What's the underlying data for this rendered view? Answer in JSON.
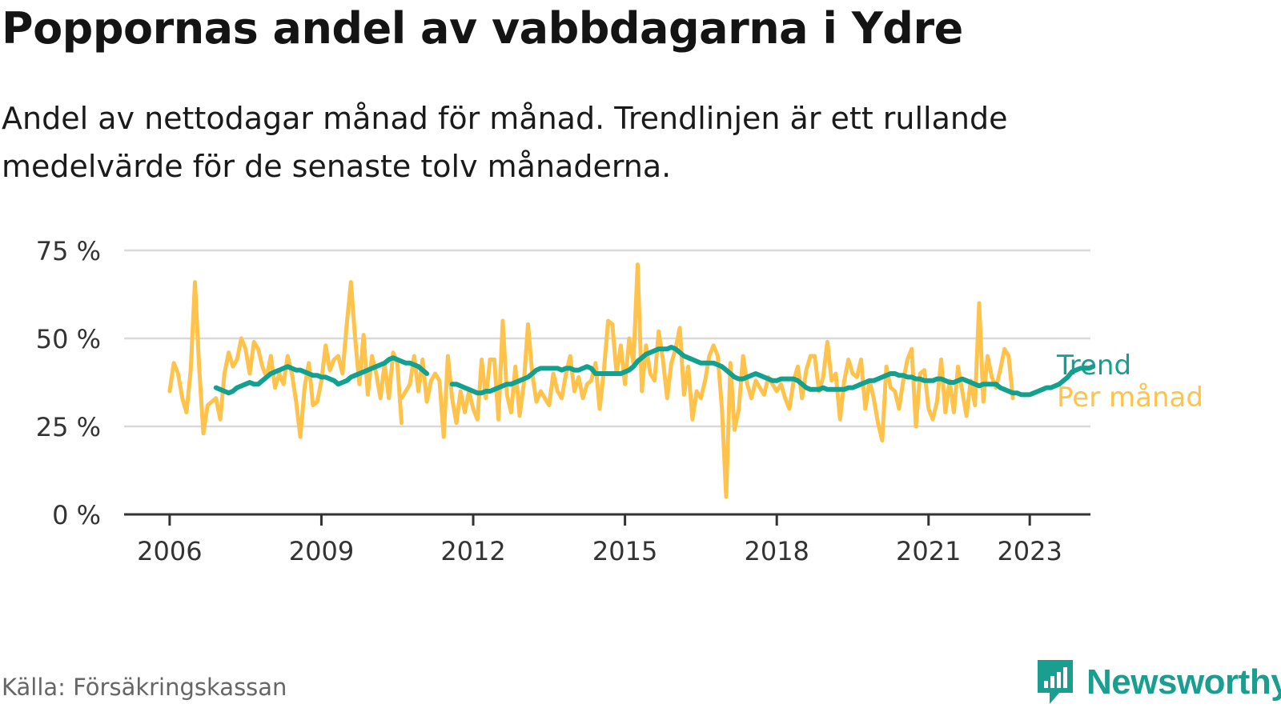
{
  "title": "Poppornas andel av vabbdagarna i Ydre",
  "subtitle": "Andel av nettodagar månad för månad. Trendlinjen är ett rullande medelvärde för de senaste tolv månaderna.",
  "source": "Källa: Försäkringskassan",
  "brand": "Newsworthy",
  "colors": {
    "trend": "#13a08f",
    "monthly": "#ffc24a",
    "grid": "#d9d9d9",
    "axis": "#333333"
  },
  "chart_data": {
    "type": "line",
    "y_unit": "%",
    "ylim": [
      0,
      75
    ],
    "y_ticks": [
      {
        "value": 0,
        "label": "0 %"
      },
      {
        "value": 25,
        "label": "25 %"
      },
      {
        "value": 50,
        "label": "50 %"
      },
      {
        "value": 75,
        "label": "75 %"
      }
    ],
    "xlim": [
      2005.1,
      2024.2
    ],
    "x_ticks": [
      {
        "value": 2006,
        "label": "2006"
      },
      {
        "value": 2009,
        "label": "2009"
      },
      {
        "value": 2012,
        "label": "2012"
      },
      {
        "value": 2015,
        "label": "2015"
      },
      {
        "value": 2018,
        "label": "2018"
      },
      {
        "value": 2021,
        "label": "2021"
      },
      {
        "value": 2023,
        "label": "2023"
      }
    ],
    "grid": true,
    "legend": "right, at line ends",
    "series": [
      {
        "name": "Per månad",
        "color": "#ffc24a",
        "segments": [
          {
            "start": 2006.0,
            "step": 0.0833333,
            "values": [
              35,
              43,
              40,
              33,
              29,
              41,
              66,
              42,
              23,
              31,
              32,
              33,
              27,
              40,
              46,
              42,
              44,
              50,
              47,
              40,
              49,
              47,
              42,
              39,
              45,
              36,
              40,
              37,
              45,
              40,
              32,
              22,
              36,
              43,
              31,
              32,
              38,
              48,
              41,
              44,
              45,
              40,
              54,
              66,
              50,
              37,
              51,
              34,
              45,
              40,
              33,
              43,
              33,
              46,
              43,
              26
            ]
          },
          {
            "start": 2010.5833333,
            "step": 0.0833333,
            "values": [
              33,
              35,
              37,
              45,
              35,
              44,
              32,
              38,
              40,
              38,
              22,
              45,
              33,
              26,
              35,
              29,
              35,
              30,
              27,
              44,
              33,
              44,
              44,
              27,
              55,
              34,
              29,
              42,
              28,
              37,
              54,
              40,
              32,
              35,
              33,
              31,
              40,
              35,
              33,
              40,
              45,
              35,
              39,
              33,
              37,
              38,
              43,
              30,
              41,
              55,
              54,
              40,
              48,
              37,
              50,
              43,
              71,
              35,
              48,
              40,
              38,
              52,
              44,
              33,
              43,
              47,
              53,
              34,
              42,
              27,
              35,
              33,
              38,
              45,
              48,
              45,
              30,
              5,
              43,
              24,
              30,
              45,
              37,
              33,
              38,
              36,
              34,
              39,
              37,
              35,
              37,
              33,
              30,
              38,
              42,
              33,
              41,
              45,
              45,
              35,
              39,
              49,
              38,
              40,
              27,
              38,
              44,
              40,
              39,
              44,
              30,
              38,
              33,
              26,
              21,
              42,
              36,
              35,
              30,
              38,
              44,
              47,
              25,
              40,
              41,
              30,
              27,
              32,
              44,
              29,
              38,
              29,
              42,
              35,
              28,
              38,
              31,
              60,
              32,
              45,
              39,
              36,
              41,
              47,
              45,
              33
            ]
          }
        ]
      },
      {
        "name": "Trend",
        "color": "#13a08f",
        "segments": [
          {
            "start": 2006.9166667,
            "step": 0.0833333,
            "values": [
              36,
              35.5,
              35,
              34.5,
              35,
              36,
              36.5,
              37,
              37.5,
              37,
              37,
              38,
              39,
              40,
              40.5,
              41,
              41.5,
              42,
              41.5,
              41,
              41,
              40.5,
              40,
              39.5,
              39.5,
              39,
              39,
              38.5,
              38,
              37,
              37.5,
              38,
              39,
              39.5,
              40,
              40.5,
              41,
              41.5,
              42,
              42.5,
              43,
              44,
              44.5,
              44,
              43.5,
              43,
              43,
              42.5,
              42,
              41,
              40
            ]
          },
          {
            "start": 2011.5833333,
            "step": 0.0833333,
            "values": [
              37,
              37,
              36.5,
              36,
              35.5,
              35,
              34.5,
              34.5,
              35,
              35,
              35.5,
              36,
              36.5,
              37,
              37,
              37.5,
              38,
              38.5,
              39,
              40,
              41,
              41.5,
              41.5,
              41.5,
              41.5,
              41.5,
              41,
              41.5,
              41.5,
              41,
              41,
              41.5,
              42,
              41.5,
              40,
              40,
              40,
              40,
              40,
              40,
              40,
              40.5,
              41,
              42,
              43.5,
              44.5,
              45.5,
              46,
              46.5,
              47,
              47,
              47,
              47.5,
              47,
              46,
              45,
              44.5,
              44,
              43.5,
              43,
              43,
              43,
              43,
              42.5,
              42,
              41,
              40,
              39,
              38.5,
              38.5,
              39,
              39.5,
              40,
              39.5,
              39,
              38.5,
              38,
              38,
              38.5,
              38.5,
              38.5,
              38.5,
              38,
              37,
              36,
              35.5,
              35.5,
              35.5,
              36,
              35.5,
              35.5,
              35.5,
              35.5,
              35.5,
              36,
              36,
              36.5,
              37,
              37.5,
              38,
              38,
              38.5,
              39,
              39.5,
              40,
              40,
              39.5,
              39.5,
              39,
              39,
              38.5,
              38.5,
              38,
              38,
              38,
              38.5,
              38.5,
              38,
              37.5,
              37.5,
              38,
              38.5,
              38,
              37.5,
              37,
              36.5,
              37,
              37,
              37,
              37,
              36,
              35.5,
              35,
              34.5,
              34.5,
              34,
              34,
              34,
              34.5,
              35,
              35.5,
              36,
              36,
              36.5,
              37,
              38,
              39,
              40.5,
              41,
              41.5,
              41.5,
              41.5,
              42
            ]
          }
        ]
      }
    ]
  }
}
